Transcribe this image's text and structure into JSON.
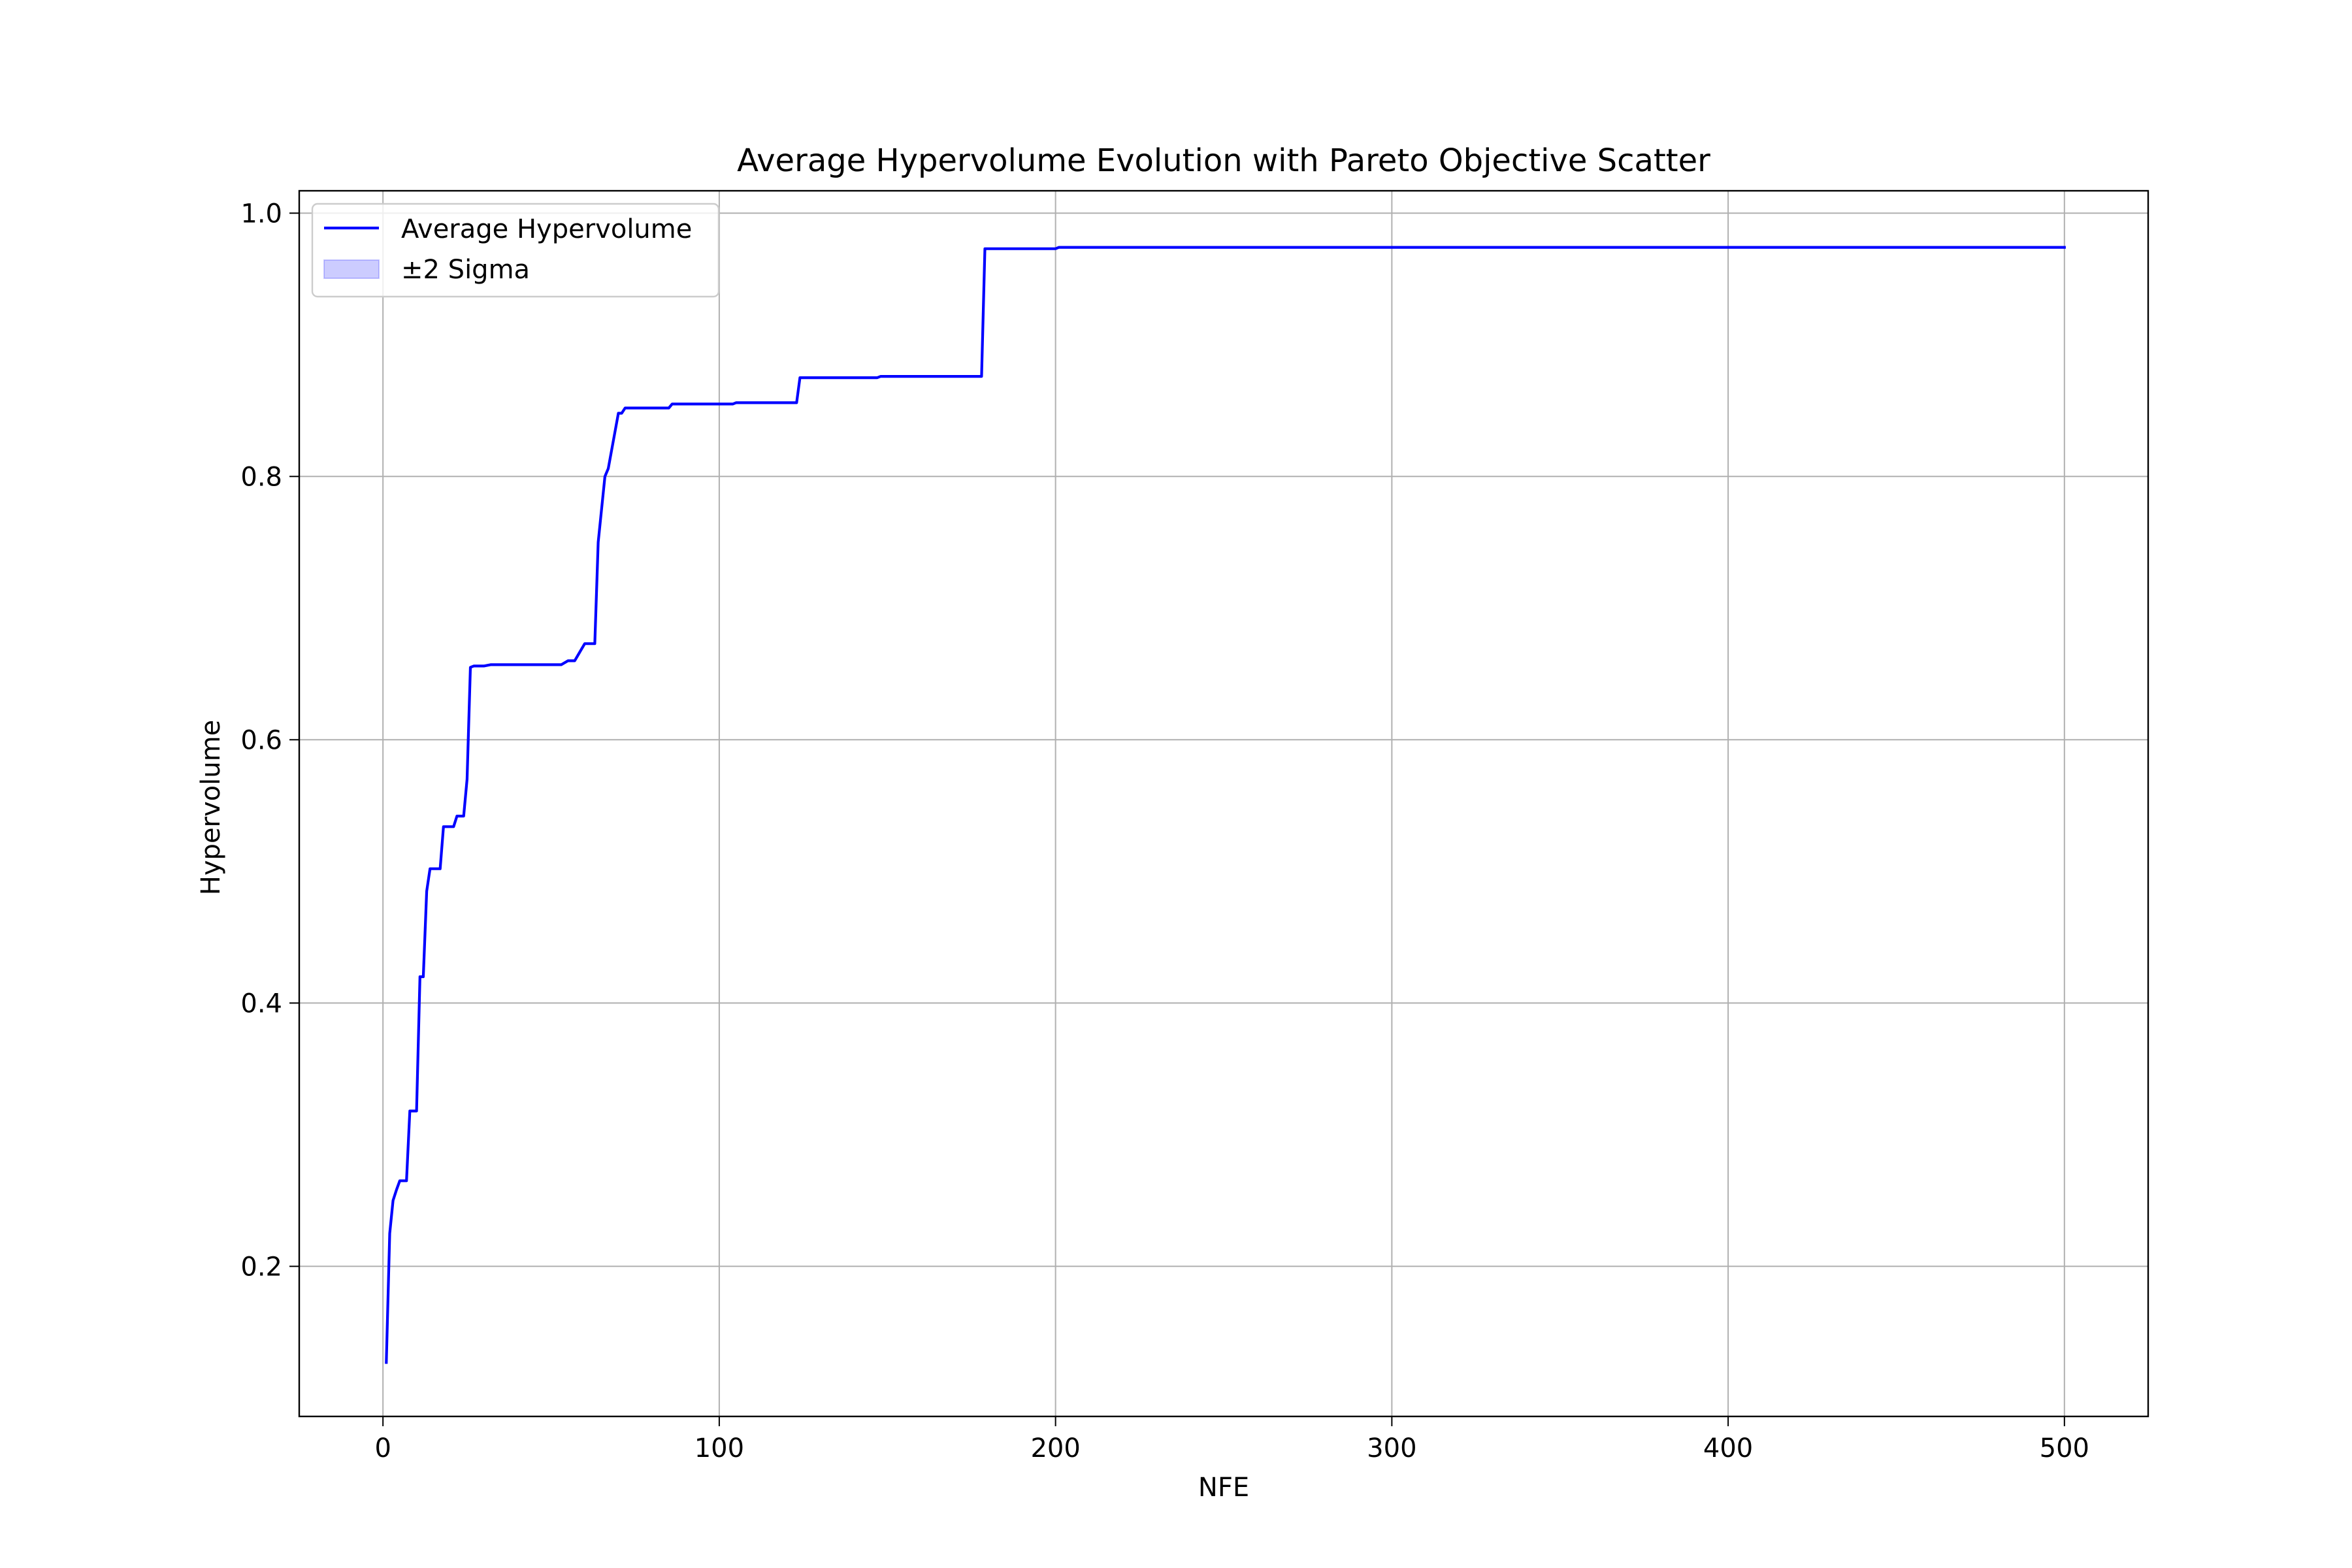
{
  "chart_data": {
    "type": "line",
    "title": "Average Hypervolume Evolution with Pareto Objective Scatter",
    "xlabel": "NFE",
    "ylabel": "Hypervolume",
    "xlim": [
      -24.9,
      524.9
    ],
    "ylim": [
      0.086,
      1.017
    ],
    "xticks": [
      0,
      100,
      200,
      300,
      400,
      500
    ],
    "yticks": [
      0.2,
      0.4,
      0.6,
      0.8,
      1.0
    ],
    "xtick_labels": [
      "0",
      "100",
      "200",
      "300",
      "400",
      "500"
    ],
    "ytick_labels": [
      "0.2",
      "0.4",
      "0.6",
      "0.8",
      "1.0"
    ],
    "grid": true,
    "legend_position": "top-left",
    "legend": [
      {
        "label": "Average Hypervolume",
        "kind": "line",
        "color": "#0000ff"
      },
      {
        "label": "±2 Sigma",
        "kind": "band",
        "color": "#0000ff"
      }
    ],
    "series": [
      {
        "name": "Average Hypervolume",
        "color": "#0000ff",
        "x": [
          1,
          2,
          3,
          4,
          5,
          6,
          7,
          8,
          9,
          10,
          11,
          12,
          13,
          14,
          15,
          16,
          17,
          18,
          19,
          20,
          21,
          22,
          23,
          24,
          25,
          26,
          27,
          28,
          30,
          32,
          33,
          45,
          53,
          55,
          56,
          57,
          60,
          62,
          63,
          64,
          66,
          67,
          70,
          71,
          72,
          85,
          86,
          104,
          105,
          123,
          124,
          147,
          148,
          178,
          179,
          200,
          201,
          500
        ],
        "y": [
          0.127,
          0.225,
          0.25,
          0.258,
          0.265,
          0.265,
          0.265,
          0.318,
          0.318,
          0.318,
          0.42,
          0.42,
          0.485,
          0.502,
          0.502,
          0.502,
          0.502,
          0.534,
          0.534,
          0.534,
          0.534,
          0.542,
          0.542,
          0.542,
          0.57,
          0.655,
          0.656,
          0.656,
          0.656,
          0.657,
          0.657,
          0.657,
          0.657,
          0.66,
          0.66,
          0.66,
          0.673,
          0.673,
          0.673,
          0.75,
          0.8,
          0.806,
          0.848,
          0.848,
          0.852,
          0.852,
          0.855,
          0.855,
          0.856,
          0.856,
          0.875,
          0.875,
          0.876,
          0.876,
          0.973,
          0.973,
          0.974,
          0.974
        ]
      }
    ]
  }
}
